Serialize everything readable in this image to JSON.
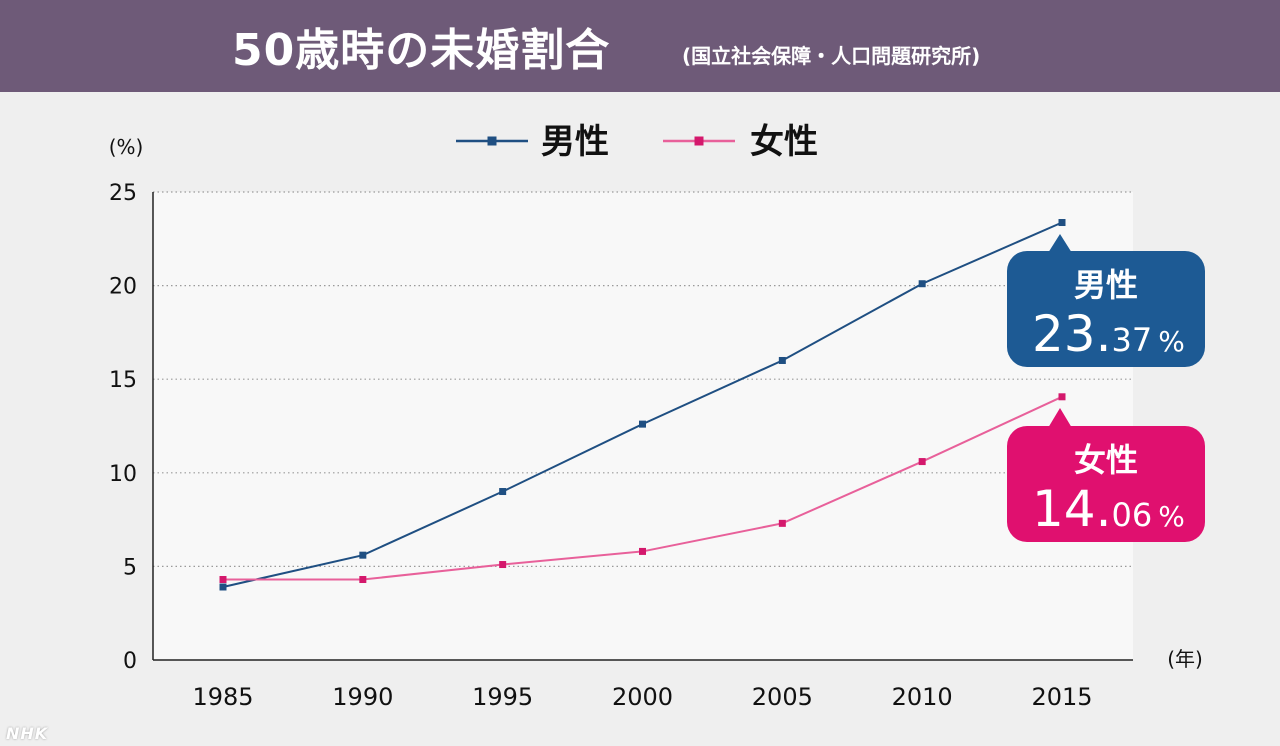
{
  "header": {
    "title": "50歳時の未婚割合",
    "source": "(国立社会保障・人口問題研究所)"
  },
  "watermark": "NHK",
  "colors": {
    "header_bg": "#6e5a78",
    "male": "#1f4f82",
    "female": "#e8609a",
    "female_marker": "#d4186c",
    "male_callout": "#1d5a94",
    "female_callout": "#e0106f"
  },
  "chart_data": {
    "type": "line",
    "x": [
      1985,
      1990,
      1995,
      2000,
      2005,
      2010,
      2015
    ],
    "x_tick_labels": [
      "1985",
      "1990",
      "1995",
      "2000",
      "2005",
      "2010",
      "2015"
    ],
    "series": [
      {
        "name": "男性",
        "values": [
          3.9,
          5.6,
          9.0,
          12.6,
          16.0,
          20.1,
          23.37
        ]
      },
      {
        "name": "女性",
        "values": [
          4.3,
          4.3,
          5.1,
          5.8,
          7.3,
          10.6,
          14.06
        ]
      }
    ],
    "ylim": [
      0,
      25
    ],
    "y_ticks": [
      0,
      5,
      10,
      15,
      20,
      25
    ],
    "ylabel": "(%)",
    "xlabel": "(年)",
    "grid": true,
    "legend_position": "top",
    "callouts": [
      {
        "series": "男性",
        "label": "男性",
        "value_int": "23.",
        "value_dec": "37",
        "unit": "%"
      },
      {
        "series": "女性",
        "label": "女性",
        "value_int": "14.",
        "value_dec": "06",
        "unit": "%"
      }
    ]
  }
}
